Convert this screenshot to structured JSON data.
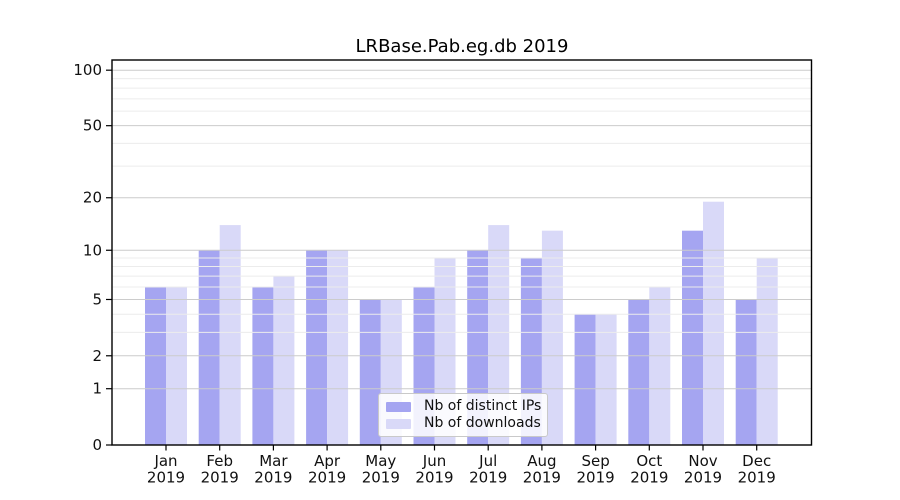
{
  "chart_data": {
    "type": "bar",
    "title": "LRBase.Pab.eg.db 2019",
    "categories": [
      {
        "month": "Jan",
        "year": "2019"
      },
      {
        "month": "Feb",
        "year": "2019"
      },
      {
        "month": "Mar",
        "year": "2019"
      },
      {
        "month": "Apr",
        "year": "2019"
      },
      {
        "month": "May",
        "year": "2019"
      },
      {
        "month": "Jun",
        "year": "2019"
      },
      {
        "month": "Jul",
        "year": "2019"
      },
      {
        "month": "Aug",
        "year": "2019"
      },
      {
        "month": "Sep",
        "year": "2019"
      },
      {
        "month": "Oct",
        "year": "2019"
      },
      {
        "month": "Nov",
        "year": "2019"
      },
      {
        "month": "Dec",
        "year": "2019"
      }
    ],
    "series": [
      {
        "name": "Nb of distinct IPs",
        "color": "#a5a5f1",
        "values": [
          6,
          10,
          6,
          10,
          5,
          6,
          10,
          9,
          4,
          5,
          13,
          5
        ]
      },
      {
        "name": "Nb of downloads",
        "color": "#d9d9f8",
        "values": [
          6,
          14,
          7,
          10,
          5,
          9,
          14,
          13,
          4,
          6,
          19,
          9
        ]
      }
    ],
    "xlabel": "",
    "ylabel": "",
    "yscale": "log1p",
    "ylim": [
      0,
      115
    ],
    "y_axis": {
      "tick_values": [
        0,
        1,
        2,
        5,
        10,
        20,
        50,
        100
      ],
      "minor_gridlines": [
        3,
        4,
        6,
        7,
        8,
        9,
        30,
        40,
        60,
        70,
        80,
        90
      ]
    },
    "grid": "horizontal, drawn over bars",
    "legend_position": "inside bottom-center",
    "colors": {
      "axis": "#000000",
      "text": "#111111",
      "grid_major": "#cccccc",
      "grid_minor": "#ececec",
      "background": "#ffffff",
      "legend_border": "#c9c9c9"
    }
  }
}
